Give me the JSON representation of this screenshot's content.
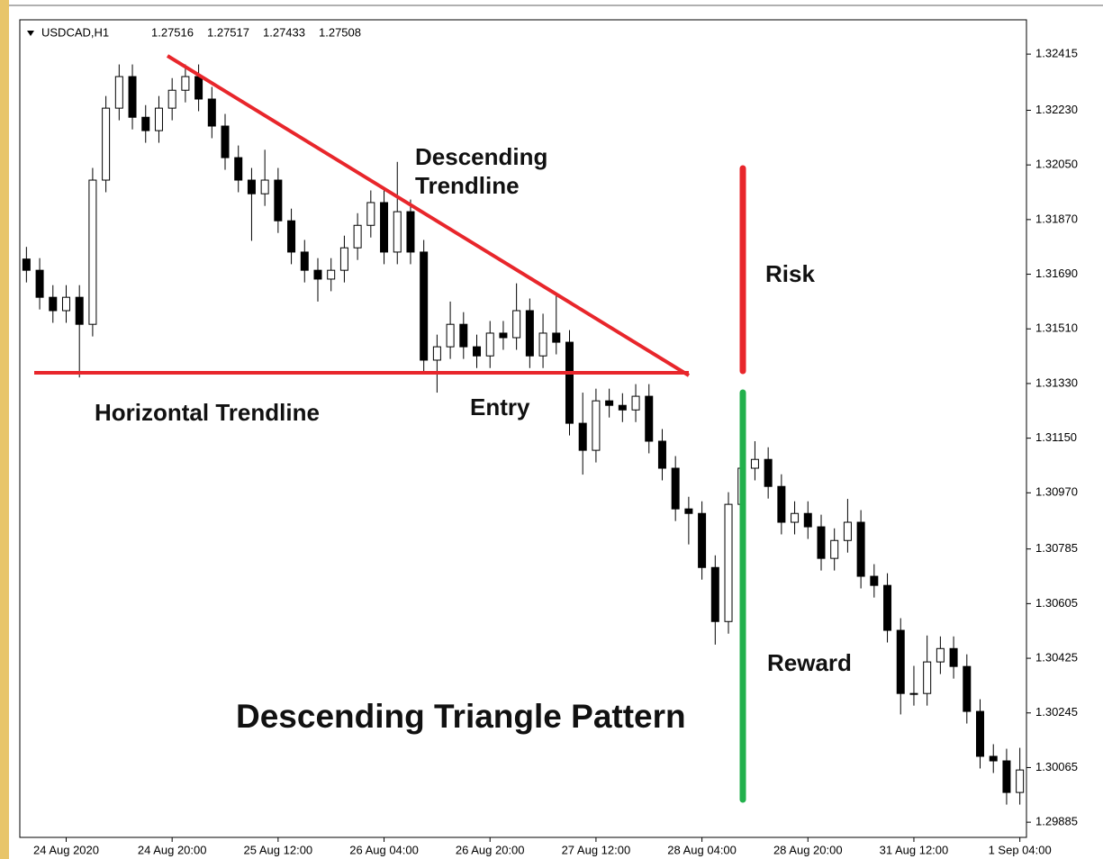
{
  "chart_data": {
    "type": "candlestick",
    "symbol": "USDCAD,H1",
    "quote": [
      1.27516,
      1.27517,
      1.27433,
      1.27508
    ],
    "annotations": {
      "descending": "Descending Trendline",
      "horizontal": "Horizontal Trendline",
      "entry": "Entry",
      "risk": "Risk",
      "reward": "Reward",
      "title": "Descending Triangle Pattern"
    },
    "categories": [
      null,
      null,
      null,
      "24 Aug 2020",
      null,
      null,
      null,
      null,
      null,
      null,
      null,
      "24 Aug 20:00",
      null,
      null,
      null,
      null,
      null,
      null,
      null,
      "25 Aug 12:00",
      null,
      null,
      null,
      null,
      null,
      null,
      null,
      "26 Aug 04:00",
      null,
      null,
      null,
      null,
      null,
      null,
      null,
      "26 Aug 20:00",
      null,
      null,
      null,
      null,
      null,
      null,
      null,
      "27 Aug 12:00",
      null,
      null,
      null,
      null,
      null,
      null,
      null,
      "28 Aug 04:00",
      null,
      null,
      null,
      null,
      null,
      null,
      null,
      "28 Aug 20:00",
      null,
      null,
      null,
      null,
      null,
      null,
      null,
      "31 Aug 12:00",
      null,
      null,
      null,
      null,
      null,
      null,
      null,
      "1 Sep 04:00"
    ],
    "open": [
      1.3174,
      1.31703,
      1.31614,
      1.3157,
      1.31614,
      1.31525,
      1.32,
      1.32237,
      1.32341,
      1.32207,
      1.32163,
      1.32237,
      1.32296,
      1.32341,
      1.32267,
      1.32178,
      1.32074,
      1.32,
      1.31955,
      1.32,
      1.31866,
      1.31763,
      1.31703,
      1.31674,
      1.31703,
      1.31777,
      1.31851,
      1.31926,
      1.31763,
      1.31896,
      1.31763,
      1.31407,
      1.31451,
      1.31525,
      1.31451,
      1.31421,
      1.31496,
      1.31481,
      1.3157,
      1.31421,
      1.31496,
      1.31466,
      1.31199,
      1.3111,
      1.31273,
      1.31258,
      1.31243,
      1.31288,
      1.3114,
      1.31051,
      1.30917,
      1.30902,
      1.30724,
      1.30546,
      1.30932,
      1.31051,
      1.3108,
      1.30991,
      1.30873,
      1.30902,
      1.30858,
      1.30754,
      1.30813,
      1.30873,
      1.30695,
      1.30665,
      1.30517,
      1.30309,
      1.30309,
      1.30413,
      1.30457,
      1.30398,
      1.3025,
      1.30102,
      1.30087,
      1.29983
    ],
    "high": [
      1.3178,
      1.31743,
      1.31654,
      1.31654,
      1.31654,
      1.3204,
      1.32277,
      1.32381,
      1.32381,
      1.32247,
      1.32277,
      1.32336,
      1.32381,
      1.32381,
      1.32307,
      1.32218,
      1.32114,
      1.3204,
      1.321,
      1.3204,
      1.31906,
      1.31803,
      1.31743,
      1.31743,
      1.31817,
      1.31891,
      1.31966,
      1.31966,
      1.3206,
      1.31936,
      1.31803,
      1.31491,
      1.316,
      1.31565,
      1.31491,
      1.31536,
      1.31536,
      1.3166,
      1.3161,
      1.3156,
      1.3162,
      1.31506,
      1.313,
      1.31313,
      1.31313,
      1.31298,
      1.31328,
      1.31328,
      1.3118,
      1.31091,
      1.30957,
      1.30942,
      1.30764,
      1.30972,
      1.3118,
      1.3114,
      1.3112,
      1.31031,
      1.30942,
      1.30942,
      1.30898,
      1.30853,
      1.3095,
      1.30913,
      1.30735,
      1.30705,
      1.30557,
      1.304,
      1.305,
      1.30497,
      1.30497,
      1.30438,
      1.3029,
      1.30142,
      1.30127,
      1.3013
    ],
    "low": [
      1.31663,
      1.31574,
      1.3153,
      1.3153,
      1.3135,
      1.31485,
      1.3196,
      1.32197,
      1.32167,
      1.32123,
      1.32123,
      1.32197,
      1.32256,
      1.32227,
      1.32138,
      1.32034,
      1.3196,
      1.318,
      1.31915,
      1.31826,
      1.31723,
      1.31663,
      1.316,
      1.31634,
      1.31663,
      1.31737,
      1.31811,
      1.31723,
      1.31723,
      1.31723,
      1.31367,
      1.313,
      1.31411,
      1.31411,
      1.31381,
      1.31381,
      1.31441,
      1.31441,
      1.31381,
      1.31381,
      1.31426,
      1.31159,
      1.3103,
      1.3107,
      1.31218,
      1.31203,
      1.31203,
      1.311,
      1.31011,
      1.30877,
      1.308,
      1.30684,
      1.3047,
      1.30506,
      1.30892,
      1.31011,
      1.30951,
      1.30833,
      1.30833,
      1.30818,
      1.30714,
      1.30714,
      1.30773,
      1.30655,
      1.30625,
      1.30477,
      1.3024,
      1.30269,
      1.30269,
      1.30373,
      1.30358,
      1.3021,
      1.30062,
      1.30047,
      1.29943,
      1.29943
    ],
    "close": [
      1.31703,
      1.31614,
      1.3157,
      1.31614,
      1.31525,
      1.32,
      1.32237,
      1.32341,
      1.32207,
      1.32163,
      1.32237,
      1.32296,
      1.32341,
      1.32267,
      1.32178,
      1.32074,
      1.32,
      1.31955,
      1.32,
      1.31866,
      1.31763,
      1.31703,
      1.31674,
      1.31703,
      1.31777,
      1.31851,
      1.31926,
      1.31763,
      1.31896,
      1.31763,
      1.31407,
      1.31451,
      1.31525,
      1.31451,
      1.31421,
      1.31496,
      1.31481,
      1.3157,
      1.31421,
      1.31496,
      1.31466,
      1.31199,
      1.3111,
      1.31273,
      1.31258,
      1.31243,
      1.31288,
      1.3114,
      1.31051,
      1.30917,
      1.30902,
      1.30724,
      1.30546,
      1.30932,
      1.31051,
      1.3108,
      1.30991,
      1.30873,
      1.30902,
      1.30858,
      1.30754,
      1.30813,
      1.30873,
      1.30695,
      1.30665,
      1.30517,
      1.30309,
      1.30309,
      1.30413,
      1.30457,
      1.30398,
      1.3025,
      1.30102,
      1.30087,
      1.29983,
      1.30057
    ],
    "up_color": "#ffffff",
    "down_color": "#000000",
    "ylim": [
      1.29835,
      1.32528
    ],
    "yticks": [
      {
        "value": 1.32415,
        "label": "1.32415"
      },
      {
        "value": 1.3223,
        "label": "1.32230"
      },
      {
        "value": 1.3205,
        "label": "1.32050"
      },
      {
        "value": 1.3187,
        "label": "1.31870"
      },
      {
        "value": 1.3169,
        "label": "1.31690"
      },
      {
        "value": 1.3151,
        "label": "1.31510"
      },
      {
        "value": 1.3133,
        "label": "1.31330"
      },
      {
        "value": 1.3115,
        "label": "1.31150"
      },
      {
        "value": 1.3097,
        "label": "1.30970"
      },
      {
        "value": 1.30785,
        "label": "1.30785"
      },
      {
        "value": 1.30605,
        "label": "1.30605"
      },
      {
        "value": 1.30425,
        "label": "1.30425"
      },
      {
        "value": 1.30245,
        "label": "1.30245"
      },
      {
        "value": 1.30065,
        "label": "1.30065"
      },
      {
        "value": 1.29885,
        "label": "1.29885"
      }
    ],
    "grid": false
  }
}
